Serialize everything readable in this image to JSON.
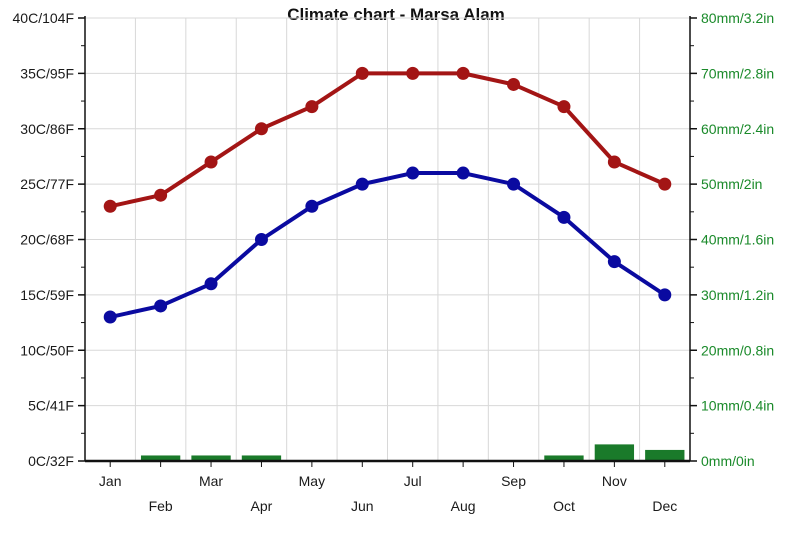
{
  "chart_data": {
    "type": "line",
    "title": "Climate chart - Marsa Alam",
    "categories": [
      "Jan",
      "Feb",
      "Mar",
      "Apr",
      "May",
      "Jun",
      "Jul",
      "Aug",
      "Sep",
      "Oct",
      "Nov",
      "Dec"
    ],
    "left_axis": {
      "ylim": [
        0,
        40
      ],
      "ticks": [
        0,
        5,
        10,
        15,
        20,
        25,
        30,
        35,
        40
      ],
      "tick_labels": [
        "0C/32F",
        "5C/41F",
        "10C/50F",
        "15C/59F",
        "20C/68F",
        "25C/77F",
        "30C/86F",
        "35C/95F",
        "40C/104F"
      ]
    },
    "right_axis": {
      "ylim": [
        0,
        80
      ],
      "ticks": [
        0,
        10,
        20,
        30,
        40,
        50,
        60,
        70,
        80
      ],
      "tick_labels": [
        "0mm/0in",
        "10mm/0.4in",
        "20mm/0.8in",
        "30mm/1.2in",
        "40mm/1.6in",
        "50mm/2in",
        "60mm/2.4in",
        "70mm/2.8in",
        "80mm/3.2in"
      ],
      "color": "#1a8a2a"
    },
    "series": [
      {
        "type": "line",
        "axis": "left",
        "color": "#a31515",
        "values": [
          23,
          24,
          27,
          30,
          32,
          35,
          35,
          35,
          34,
          32,
          27,
          25
        ]
      },
      {
        "type": "line",
        "axis": "left",
        "color": "#0a0aa0",
        "values": [
          13,
          14,
          16,
          20,
          23,
          25,
          26,
          26,
          25,
          22,
          18,
          15
        ]
      },
      {
        "type": "bar",
        "axis": "right",
        "color": "#1a7a2a",
        "values": [
          0,
          1,
          1,
          1,
          0,
          0,
          0,
          0,
          0,
          1,
          3,
          2
        ]
      }
    ],
    "grid": true
  }
}
